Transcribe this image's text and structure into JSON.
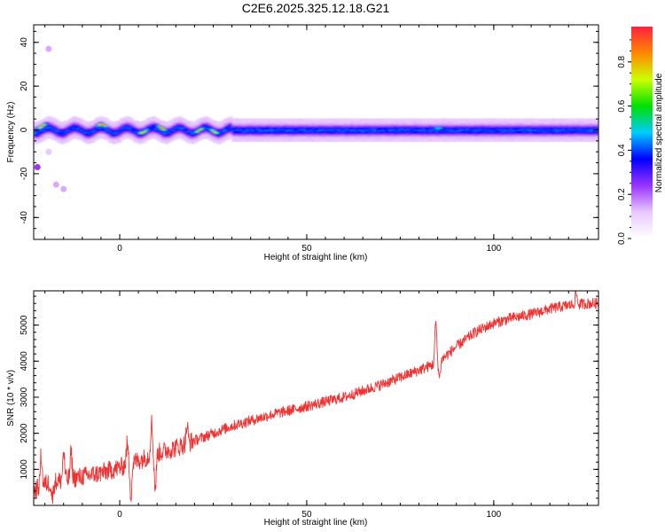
{
  "figure": {
    "title": "C2E6.2025.325.12.18.G21"
  },
  "colors": {
    "snr_line": "#ee3333",
    "colormap": [
      "#ffffff",
      "#e8c8ff",
      "#9933ff",
      "#0000ff",
      "#00ccff",
      "#00e000",
      "#ccff00",
      "#ff8800",
      "#ff2040"
    ]
  },
  "chart_data": [
    {
      "type": "heatmap",
      "title": "",
      "xlabel": "Height of straight line (km)",
      "ylabel": "Frequency (Hz)",
      "xlim": [
        -23,
        128
      ],
      "ylim": [
        -50,
        48
      ],
      "xticks": [
        0,
        50,
        100
      ],
      "yticks": [
        -40,
        -20,
        0,
        20,
        40
      ],
      "xtick_labels": [
        "0",
        "50",
        "100"
      ],
      "ytick_labels": [
        "-40",
        "-20",
        "0",
        "20",
        "40"
      ],
      "band": {
        "center_freq": 0,
        "core_halfwidth": 1.5,
        "outer_halfwidth": 5
      },
      "hotspots": [
        {
          "x": -21,
          "freq": 2,
          "level": 0.95
        },
        {
          "x": -5,
          "freq": 1.5,
          "level": 1.0
        },
        {
          "x": 6,
          "freq": 0,
          "level": 0.95
        },
        {
          "x": 11,
          "freq": 1.5,
          "level": 1.0
        },
        {
          "x": 21,
          "freq": 0,
          "level": 0.9
        },
        {
          "x": 25,
          "freq": 0,
          "level": 0.85
        },
        {
          "x": 85,
          "freq": 1,
          "level": 0.65
        }
      ],
      "outliers": [
        {
          "x": -22,
          "freq": -17,
          "level": 0.25
        },
        {
          "x": -19,
          "freq": 37,
          "level": 0.15
        },
        {
          "x": -17,
          "freq": -25,
          "level": 0.15
        },
        {
          "x": -15,
          "freq": -27,
          "level": 0.15
        },
        {
          "x": -19,
          "freq": -10,
          "level": 0.12
        }
      ],
      "colorbar": {
        "label": "Normalized spectral amplitude",
        "range": [
          0,
          0.96
        ],
        "ticks": [
          0,
          0.2,
          0.4,
          0.6,
          0.8
        ],
        "tick_labels": [
          "0.0",
          "0.2",
          "0.4",
          "0.6",
          "0.8"
        ]
      }
    },
    {
      "type": "line",
      "title": "",
      "xlabel": "Height of straight line (km)",
      "ylabel": "SNR (10 * v/v)",
      "xlim": [
        -23,
        128
      ],
      "ylim": [
        0,
        5950
      ],
      "xticks": [
        0,
        50,
        100
      ],
      "yticks": [
        1000,
        2000,
        3000,
        4000,
        5000
      ],
      "xtick_labels": [
        "0",
        "50",
        "100"
      ],
      "ytick_labels": [
        "1000",
        "2000",
        "3000",
        "4000",
        "5000"
      ],
      "trend": {
        "x": [
          -23,
          -20,
          -15,
          -10,
          -5,
          0,
          5,
          10,
          15,
          20,
          25,
          30,
          40,
          50,
          60,
          70,
          80,
          85,
          90,
          95,
          100,
          105,
          110,
          115,
          120,
          125,
          128
        ],
        "y": [
          400,
          600,
          700,
          800,
          900,
          1050,
          1250,
          1450,
          1600,
          1800,
          2000,
          2200,
          2500,
          2750,
          3000,
          3350,
          3750,
          3950,
          4400,
          4800,
          5050,
          5200,
          5300,
          5450,
          5550,
          5600,
          5600
        ]
      },
      "spikes": [
        {
          "x": -21,
          "y": 1400
        },
        {
          "x": -18,
          "y": 200
        },
        {
          "x": -15,
          "y": 1500
        },
        {
          "x": -13,
          "y": 1450
        },
        {
          "x": 2,
          "y": 1700
        },
        {
          "x": 3,
          "y": 300
        },
        {
          "x": 8.5,
          "y": 2300
        },
        {
          "x": 9.5,
          "y": 450
        },
        {
          "x": 18,
          "y": 2200
        },
        {
          "x": 84.5,
          "y": 5100
        },
        {
          "x": 85.5,
          "y": 3550
        },
        {
          "x": 122,
          "y": 5900
        }
      ],
      "noise_amplitude": 150,
      "n_points": 1600
    }
  ]
}
